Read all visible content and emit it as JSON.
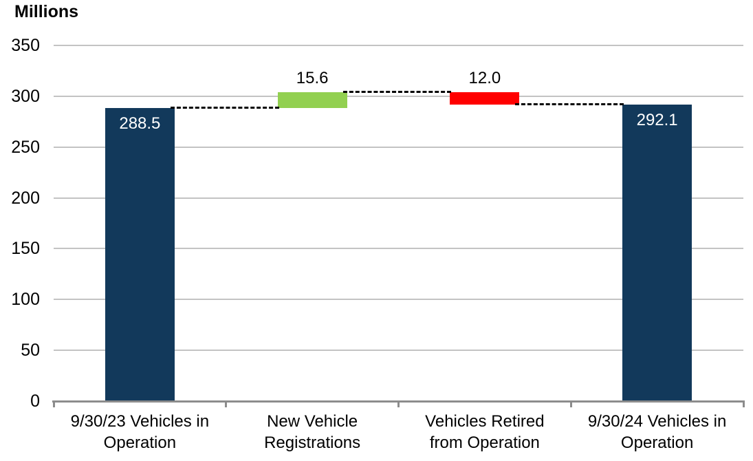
{
  "title": "Millions",
  "chart_data": {
    "type": "bar",
    "subtype": "waterfall",
    "title": "Millions",
    "ylabel": "Millions",
    "xlabel": "",
    "ylim": [
      0,
      350
    ],
    "yticks": [
      0,
      50,
      100,
      150,
      200,
      250,
      300,
      350
    ],
    "grid": true,
    "legend": "none",
    "categories": [
      "9/30/23 Vehicles in Operation",
      "New Vehicle Registrations",
      "Vehicles Retired from Operation",
      "9/30/24 Vehicles in Operation"
    ],
    "category_lines": [
      [
        "9/30/23 Vehicles in",
        "Operation"
      ],
      [
        "New Vehicle",
        "Registrations"
      ],
      [
        "Vehicles Retired",
        "from Operation"
      ],
      [
        "9/30/24 Vehicles in",
        "Operation"
      ]
    ],
    "bars": [
      {
        "name": "vehicles-in-operation-9-30-23",
        "role": "total",
        "value": 288.5,
        "base": 0,
        "top": 288.5,
        "value_label": "288.5",
        "color": "#12395B",
        "value_label_color": "#FFFFFF",
        "value_label_position": "inside-top"
      },
      {
        "name": "new-vehicle-registrations",
        "role": "increase",
        "value": 15.6,
        "base": 288.5,
        "top": 304.1,
        "value_label": "15.6",
        "color": "#92D050",
        "value_label_color": "#000000",
        "value_label_position": "above"
      },
      {
        "name": "vehicles-retired",
        "role": "decrease",
        "value": 12.0,
        "base": 292.1,
        "top": 304.1,
        "value_label": "12.0",
        "color": "#FF0000",
        "value_label_color": "#000000",
        "value_label_position": "above"
      },
      {
        "name": "vehicles-in-operation-9-30-24",
        "role": "total",
        "value": 292.1,
        "base": 0,
        "top": 292.1,
        "value_label": "292.1",
        "color": "#12395B",
        "value_label_color": "#FFFFFF",
        "value_label_position": "inside-top"
      }
    ],
    "connectors": [
      {
        "level": 288.5,
        "from": 0,
        "to": 1
      },
      {
        "level": 304.1,
        "from": 1,
        "to": 2
      },
      {
        "level": 292.1,
        "from": 2,
        "to": 3
      }
    ],
    "colors": {
      "gridline": "#C3C3C3",
      "axis": "#8C8C8C",
      "connector": "#000000",
      "text": "#000000",
      "background": "#FFFFFF"
    }
  }
}
